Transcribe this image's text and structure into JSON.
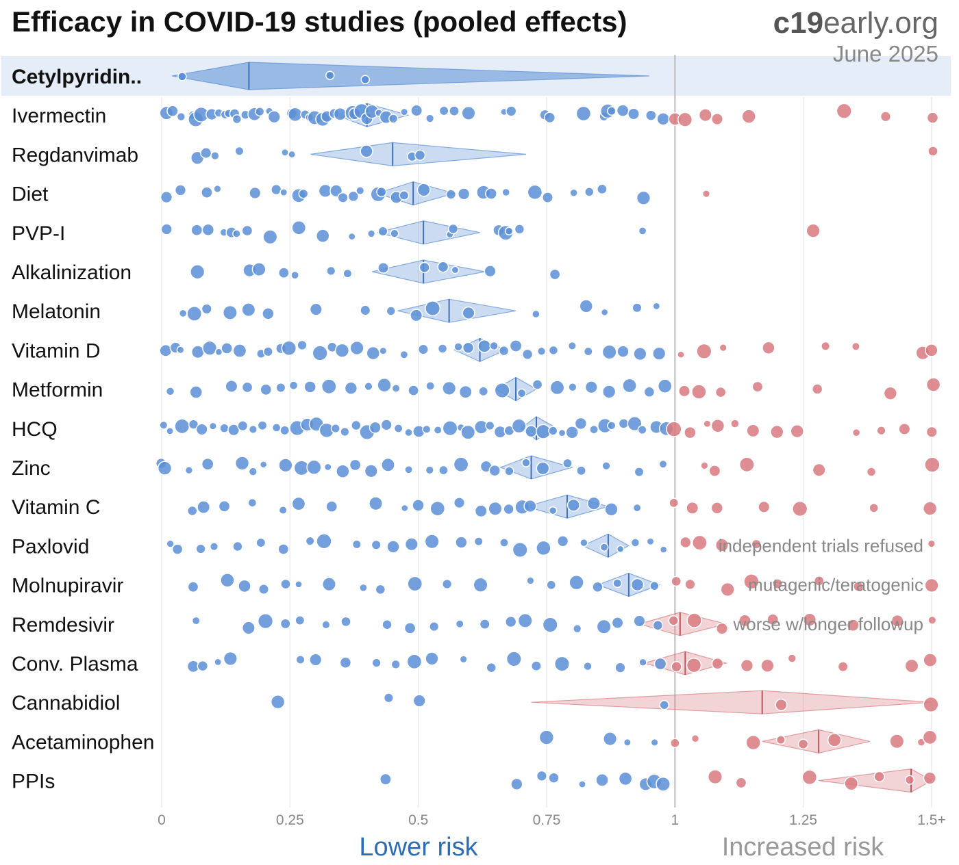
{
  "header": {
    "title": "Efficacy in COVID-19 studies (pooled effects)",
    "brand_bold": "c19",
    "brand_rest": "early.org",
    "date": "June 2025"
  },
  "footer": {
    "lower_label": "Lower risk",
    "higher_label": "Increased risk"
  },
  "colors": {
    "benefit": "#5b8fd6",
    "harm": "#d87a7f",
    "highlight_band": "#e5edf8",
    "ref_line": "#bbbbbb"
  },
  "chart_data": {
    "type": "scatter",
    "title": "Efficacy in COVID-19 studies (pooled effects)",
    "xlabel": "",
    "ylabel": "",
    "x_axis": {
      "range": [
        0,
        1.5
      ],
      "ticks": [
        0,
        0.25,
        0.5,
        0.75,
        1,
        1.25,
        1.5
      ],
      "tick_labels": [
        "0",
        "0.25",
        "0.5",
        "0.75",
        "1",
        "1.25",
        "1.5+"
      ],
      "reference_value": 1
    },
    "rows": [
      {
        "name": "Cetylpyridin..",
        "highlight": true,
        "pooled": 0.17,
        "ci": [
          0.02,
          0.95
        ],
        "studies": [
          0.04,
          0.33,
          0.4
        ]
      },
      {
        "name": "Ivermectin",
        "pooled": 0.4,
        "ci": [
          0.34,
          0.48
        ],
        "ci_ext": [
          0.34,
          0.48
        ],
        "note": "",
        "studies": [
          0.01,
          0.02,
          0.04,
          0.06,
          0.07,
          0.08,
          0.1,
          0.11,
          0.12,
          0.13,
          0.14,
          0.15,
          0.16,
          0.18,
          0.19,
          0.21,
          0.22,
          0.25,
          0.26,
          0.28,
          0.29,
          0.3,
          0.31,
          0.32,
          0.34,
          0.35,
          0.37,
          0.38,
          0.39,
          0.4,
          0.41,
          0.42,
          0.44,
          0.45,
          0.47,
          0.5,
          0.52,
          0.55,
          0.57,
          0.6,
          0.67,
          0.68,
          0.75,
          0.76,
          0.82,
          0.86,
          0.87,
          0.88,
          0.9,
          0.92,
          0.95,
          0.98,
          1.0,
          1.02,
          1.06,
          1.08,
          1.14,
          1.33,
          1.41,
          1.5
        ]
      },
      {
        "name": "Regdanvimab",
        "pooled": 0.45,
        "ci": [
          0.29,
          0.71
        ],
        "studies": [
          0.07,
          0.09,
          0.1,
          0.15,
          0.24,
          0.25,
          0.4,
          0.49,
          0.5,
          1.5
        ]
      },
      {
        "name": "Diet",
        "pooled": 0.49,
        "ci": [
          0.42,
          0.57
        ],
        "studies": [
          0.01,
          0.04,
          0.09,
          0.11,
          0.18,
          0.22,
          0.24,
          0.27,
          0.28,
          0.32,
          0.34,
          0.35,
          0.37,
          0.39,
          0.42,
          0.43,
          0.46,
          0.47,
          0.51,
          0.56,
          0.59,
          0.63,
          0.64,
          0.67,
          0.73,
          0.75,
          0.8,
          0.83,
          0.86,
          0.94,
          1.06
        ]
      },
      {
        "name": "PVP-I",
        "pooled": 0.51,
        "ci": [
          0.42,
          0.62
        ],
        "studies": [
          0.01,
          0.07,
          0.09,
          0.12,
          0.14,
          0.15,
          0.17,
          0.21,
          0.27,
          0.31,
          0.37,
          0.41,
          0.43,
          0.45,
          0.56,
          0.57,
          0.66,
          0.67,
          0.68,
          0.7,
          0.94,
          1.27
        ]
      },
      {
        "name": "Alkalinization",
        "pooled": 0.51,
        "ci": [
          0.41,
          0.63
        ],
        "studies": [
          0.07,
          0.17,
          0.19,
          0.24,
          0.26,
          0.33,
          0.36,
          0.43,
          0.51,
          0.55,
          0.57,
          0.64,
          0.77
        ]
      },
      {
        "name": "Melatonin",
        "pooled": 0.56,
        "ci": [
          0.46,
          0.69
        ],
        "studies": [
          0.04,
          0.06,
          0.09,
          0.13,
          0.17,
          0.21,
          0.3,
          0.4,
          0.45,
          0.5,
          0.53,
          0.6,
          0.73,
          0.83,
          0.86,
          0.93,
          0.96
        ]
      },
      {
        "name": "Vitamin D",
        "pooled": 0.62,
        "ci": [
          0.57,
          0.67
        ],
        "studies": [
          0.01,
          0.03,
          0.04,
          0.07,
          0.09,
          0.11,
          0.13,
          0.15,
          0.19,
          0.21,
          0.23,
          0.25,
          0.27,
          0.31,
          0.33,
          0.35,
          0.38,
          0.41,
          0.43,
          0.47,
          0.51,
          0.55,
          0.58,
          0.6,
          0.63,
          0.65,
          0.67,
          0.69,
          0.71,
          0.74,
          0.76,
          0.8,
          0.83,
          0.87,
          0.9,
          0.93,
          0.97,
          1.01,
          1.06,
          1.09,
          1.18,
          1.29,
          1.35,
          1.48,
          1.5
        ]
      },
      {
        "name": "Metformin",
        "pooled": 0.69,
        "ci": [
          0.65,
          0.73
        ],
        "studies": [
          0.02,
          0.07,
          0.14,
          0.17,
          0.2,
          0.23,
          0.26,
          0.29,
          0.33,
          0.37,
          0.4,
          0.43,
          0.46,
          0.49,
          0.52,
          0.56,
          0.59,
          0.63,
          0.66,
          0.7,
          0.73,
          0.77,
          0.8,
          0.84,
          0.87,
          0.91,
          0.95,
          0.98,
          1.02,
          1.05,
          1.09,
          1.16,
          1.28,
          1.42,
          1.5
        ]
      },
      {
        "name": "HCQ",
        "pooled": 0.73,
        "ci": [
          0.7,
          0.77
        ],
        "studies": [
          0.0,
          0.02,
          0.04,
          0.06,
          0.08,
          0.1,
          0.12,
          0.14,
          0.16,
          0.18,
          0.2,
          0.22,
          0.24,
          0.26,
          0.28,
          0.3,
          0.32,
          0.34,
          0.36,
          0.38,
          0.4,
          0.42,
          0.44,
          0.46,
          0.48,
          0.5,
          0.52,
          0.54,
          0.56,
          0.58,
          0.6,
          0.62,
          0.64,
          0.66,
          0.68,
          0.7,
          0.72,
          0.74,
          0.76,
          0.78,
          0.8,
          0.82,
          0.84,
          0.86,
          0.88,
          0.9,
          0.92,
          0.94,
          0.96,
          0.98,
          1.0,
          1.03,
          1.06,
          1.08,
          1.12,
          1.15,
          1.2,
          1.24,
          1.35,
          1.4,
          1.45,
          1.5
        ]
      },
      {
        "name": "Zinc",
        "pooled": 0.72,
        "ci": [
          0.66,
          0.8
        ],
        "studies": [
          0.0,
          0.01,
          0.05,
          0.09,
          0.16,
          0.18,
          0.2,
          0.24,
          0.27,
          0.3,
          0.32,
          0.35,
          0.38,
          0.41,
          0.44,
          0.48,
          0.52,
          0.55,
          0.58,
          0.63,
          0.65,
          0.68,
          0.71,
          0.74,
          0.79,
          0.82,
          0.87,
          0.93,
          0.98,
          1.06,
          1.08,
          1.14,
          1.28,
          1.38,
          1.5
        ]
      },
      {
        "name": "Vitamin C",
        "pooled": 0.79,
        "ci": [
          0.71,
          0.87
        ],
        "studies": [
          0.06,
          0.08,
          0.12,
          0.18,
          0.24,
          0.27,
          0.33,
          0.42,
          0.47,
          0.5,
          0.54,
          0.58,
          0.62,
          0.65,
          0.68,
          0.7,
          0.72,
          0.76,
          0.8,
          0.84,
          0.88,
          0.93,
          1.0,
          1.03,
          1.08,
          1.17,
          1.24,
          1.39,
          1.5
        ]
      },
      {
        "name": "Paxlovid",
        "pooled": 0.87,
        "ci": [
          0.82,
          0.91
        ],
        "note": "independent trials refused",
        "studies": [
          0.02,
          0.03,
          0.08,
          0.1,
          0.15,
          0.19,
          0.24,
          0.29,
          0.32,
          0.38,
          0.42,
          0.45,
          0.49,
          0.53,
          0.58,
          0.62,
          0.67,
          0.7,
          0.74,
          0.78,
          0.82,
          0.86,
          0.89,
          0.92,
          0.95,
          0.98,
          1.02,
          1.05,
          1.09,
          1.16,
          1.5
        ]
      },
      {
        "name": "Molnupiravir",
        "pooled": 0.91,
        "ci": [
          0.85,
          0.97
        ],
        "note": "mutagenic/teratogenic",
        "studies": [
          0.06,
          0.13,
          0.16,
          0.2,
          0.24,
          0.27,
          0.33,
          0.39,
          0.43,
          0.49,
          0.56,
          0.62,
          0.72,
          0.76,
          0.81,
          0.85,
          0.89,
          0.93,
          0.96,
          1.0,
          1.03,
          1.1,
          1.15,
          1.2,
          1.28,
          1.36,
          1.5
        ]
      },
      {
        "name": "Remdesivir",
        "pooled": 1.01,
        "ci": [
          0.93,
          1.1
        ],
        "note": "worse w/longer followup",
        "studies": [
          0.07,
          0.17,
          0.2,
          0.24,
          0.27,
          0.32,
          0.36,
          0.44,
          0.48,
          0.53,
          0.58,
          0.63,
          0.68,
          0.71,
          0.76,
          0.81,
          0.86,
          0.89,
          0.93,
          0.97,
          1.0,
          1.04,
          1.09,
          1.14,
          1.19,
          1.26,
          1.35,
          1.43,
          1.5
        ]
      },
      {
        "name": "Conv. Plasma",
        "pooled": 1.02,
        "ci": [
          0.94,
          1.1
        ],
        "studies": [
          0.06,
          0.08,
          0.11,
          0.13,
          0.27,
          0.3,
          0.36,
          0.42,
          0.46,
          0.49,
          0.53,
          0.59,
          0.64,
          0.69,
          0.73,
          0.78,
          0.83,
          0.89,
          0.94,
          0.97,
          1.0,
          1.04,
          1.08,
          1.14,
          1.18,
          1.23,
          1.33,
          1.46,
          1.5
        ]
      },
      {
        "name": "Cannabidiol",
        "pooled": 1.17,
        "ci": [
          0.72,
          1.5
        ],
        "studies": [
          0.23,
          0.44,
          0.5,
          0.98,
          1.21,
          1.5
        ]
      },
      {
        "name": "Acetaminophen",
        "pooled": 1.28,
        "ci": [
          1.17,
          1.38
        ],
        "studies": [
          0.75,
          0.87,
          0.91,
          0.96,
          1.0,
          1.04,
          1.15,
          1.21,
          1.25,
          1.31,
          1.43,
          1.48,
          1.5
        ]
      },
      {
        "name": "PPIs",
        "pooled": 1.46,
        "ci": [
          1.28,
          1.5
        ],
        "studies": [
          0.44,
          0.69,
          0.74,
          0.76,
          0.82,
          0.86,
          0.9,
          0.94,
          0.96,
          0.98,
          1.08,
          1.13,
          1.26,
          1.34,
          1.4,
          1.46,
          1.5
        ]
      }
    ]
  }
}
